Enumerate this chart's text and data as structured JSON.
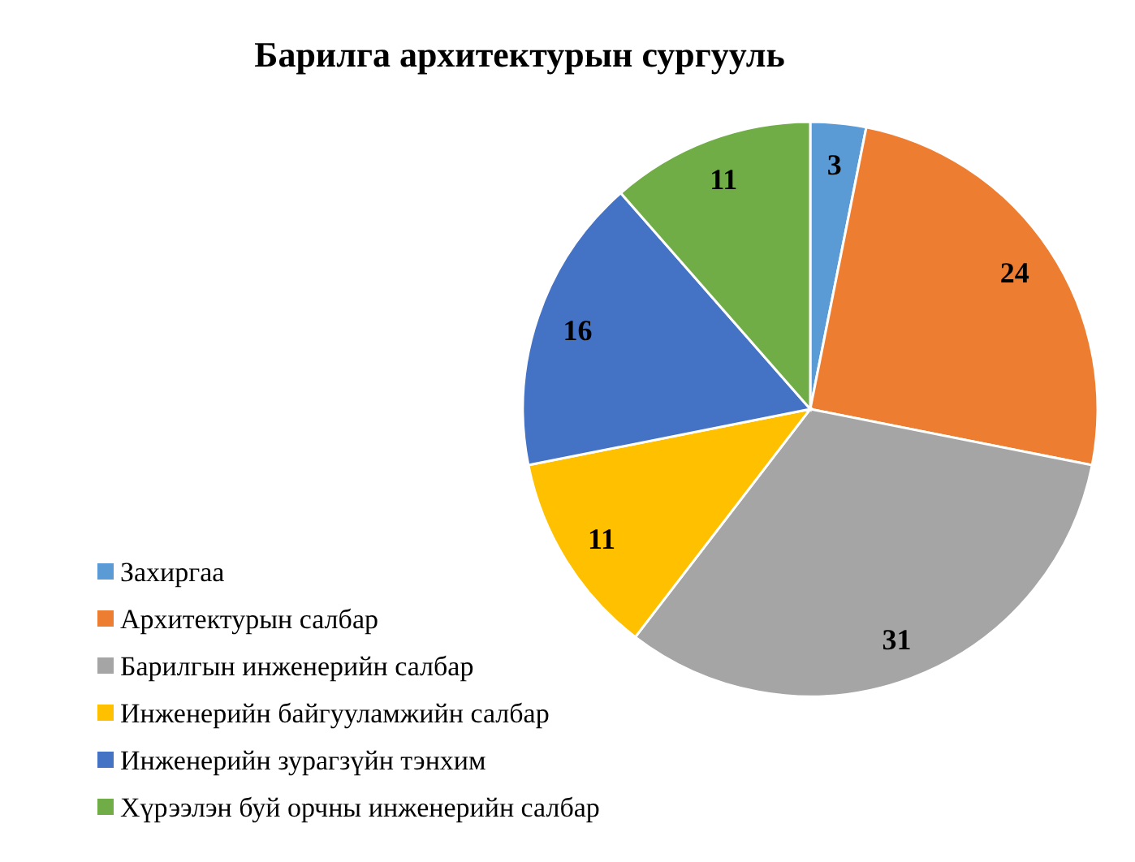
{
  "chart_data": {
    "type": "pie",
    "title": "Барилга архитектурын сургууль",
    "categories": [
      "Захиргаа",
      "Архитектурын  салбар",
      "Барилгын инженерийн салбар",
      "Инженерийн байгууламжийн  салбар",
      "Инженерийн зурагзүйн тэнхим",
      "Хүрээлэн буй орчны инженерийн салбар"
    ],
    "values": [
      3,
      24,
      31,
      11,
      16,
      11
    ],
    "colors": [
      "#5b9bd5",
      "#ed7d31",
      "#a5a5a5",
      "#ffc000",
      "#4472c4",
      "#70ad47"
    ],
    "data_labels": true,
    "legend": "bottom left"
  }
}
